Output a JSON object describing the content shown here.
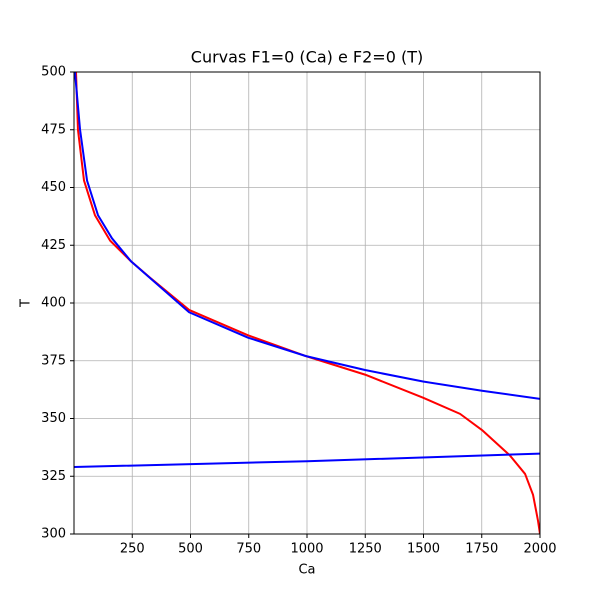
{
  "chart_data": {
    "type": "line",
    "title": "Curvas F1=0 (Ca) e F2=0 (T)",
    "x_label": "Ca",
    "y_label": "T",
    "xlim": [
      0,
      2000
    ],
    "ylim": [
      300,
      500
    ],
    "xticks": [
      250,
      500,
      750,
      1000,
      1250,
      1500,
      1750,
      2000
    ],
    "yticks": [
      300,
      325,
      350,
      375,
      400,
      425,
      450,
      475,
      500
    ],
    "grid": true,
    "series": [
      {
        "color": "#ff0000",
        "x": [
          8.6,
          17,
          43,
          90,
          155,
          245,
          326,
          494,
          747,
          996,
          1249,
          1498,
          1657,
          1751,
          1871,
          1936,
          1970,
          1991,
          2000
        ],
        "values": [
          500,
          475,
          453,
          438,
          427,
          418,
          411,
          397,
          386,
          377,
          369,
          359,
          352,
          345,
          334,
          326,
          317,
          306,
          300
        ]
      },
      {
        "color": "#0000ff",
        "x": [
          4,
          26,
          56,
          103,
          163,
          245,
          494,
          747,
          996,
          1249,
          1498,
          1751,
          2000
        ],
        "values": [
          500,
          475,
          453,
          438,
          428,
          418,
          396,
          385,
          377,
          371,
          366,
          362,
          358.5
        ]
      },
      {
        "color": "#0000ff",
        "x": [
          0,
          1000,
          2000
        ],
        "values": [
          329,
          331.5,
          334.8
        ]
      }
    ]
  }
}
